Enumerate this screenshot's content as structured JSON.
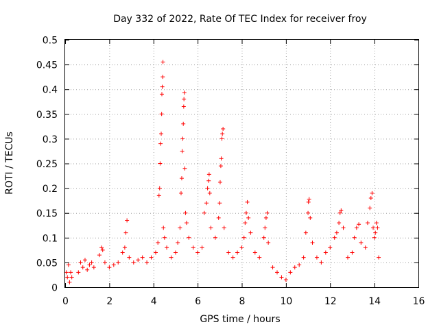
{
  "chart_data": {
    "type": "scatter",
    "title": "Day 332 of 2022, Rate Of TEC Index for receiver froy",
    "xlabel": "GPS time / hours",
    "ylabel": "ROTI / TECUs",
    "xlim": [
      0,
      16
    ],
    "ylim": [
      0,
      0.5
    ],
    "grid": true,
    "marker": "+",
    "series_color": "#ff0000",
    "x_ticks": [
      "0",
      "2",
      "4",
      "6",
      "8",
      "10",
      "12",
      "14",
      "16"
    ],
    "y_ticks": [
      "0",
      "0.05",
      "0.1",
      "0.15",
      "0.2",
      "0.25",
      "0.3",
      "0.35",
      "0.4",
      "0.45",
      "0.5"
    ],
    "series": [
      {
        "name": "ROTI",
        "points": [
          [
            0.05,
            0.03
          ],
          [
            0.1,
            0.02
          ],
          [
            0.15,
            0.045
          ],
          [
            0.2,
            0.01
          ],
          [
            0.25,
            0.03
          ],
          [
            0.3,
            0.02
          ],
          [
            0.6,
            0.03
          ],
          [
            0.7,
            0.05
          ],
          [
            0.8,
            0.04
          ],
          [
            0.9,
            0.055
          ],
          [
            1.0,
            0.035
          ],
          [
            1.1,
            0.045
          ],
          [
            1.2,
            0.05
          ],
          [
            1.3,
            0.04
          ],
          [
            1.55,
            0.065
          ],
          [
            1.65,
            0.08
          ],
          [
            1.7,
            0.075
          ],
          [
            1.8,
            0.05
          ],
          [
            2.0,
            0.04
          ],
          [
            2.2,
            0.045
          ],
          [
            2.4,
            0.05
          ],
          [
            2.6,
            0.07
          ],
          [
            2.7,
            0.08
          ],
          [
            2.75,
            0.11
          ],
          [
            2.8,
            0.135
          ],
          [
            2.9,
            0.06
          ],
          [
            3.1,
            0.05
          ],
          [
            3.3,
            0.055
          ],
          [
            3.5,
            0.06
          ],
          [
            3.7,
            0.05
          ],
          [
            3.9,
            0.06
          ],
          [
            4.1,
            0.07
          ],
          [
            4.2,
            0.09
          ],
          [
            4.25,
            0.185
          ],
          [
            4.28,
            0.2
          ],
          [
            4.3,
            0.25
          ],
          [
            4.32,
            0.29
          ],
          [
            4.35,
            0.31
          ],
          [
            4.37,
            0.35
          ],
          [
            4.38,
            0.39
          ],
          [
            4.4,
            0.405
          ],
          [
            4.42,
            0.425
          ],
          [
            4.43,
            0.455
          ],
          [
            4.45,
            0.12
          ],
          [
            4.5,
            0.1
          ],
          [
            4.6,
            0.08
          ],
          [
            4.8,
            0.06
          ],
          [
            5.0,
            0.07
          ],
          [
            5.1,
            0.09
          ],
          [
            5.2,
            0.12
          ],
          [
            5.25,
            0.19
          ],
          [
            5.28,
            0.22
          ],
          [
            5.3,
            0.275
          ],
          [
            5.32,
            0.3
          ],
          [
            5.35,
            0.33
          ],
          [
            5.37,
            0.365
          ],
          [
            5.38,
            0.38
          ],
          [
            5.4,
            0.393
          ],
          [
            5.42,
            0.24
          ],
          [
            5.45,
            0.15
          ],
          [
            5.5,
            0.13
          ],
          [
            5.6,
            0.1
          ],
          [
            5.8,
            0.08
          ],
          [
            6.0,
            0.07
          ],
          [
            6.2,
            0.08
          ],
          [
            6.3,
            0.15
          ],
          [
            6.4,
            0.17
          ],
          [
            6.45,
            0.2
          ],
          [
            6.5,
            0.215
          ],
          [
            6.52,
            0.228
          ],
          [
            6.55,
            0.19
          ],
          [
            6.6,
            0.12
          ],
          [
            6.8,
            0.1
          ],
          [
            6.95,
            0.14
          ],
          [
            7.0,
            0.17
          ],
          [
            7.02,
            0.212
          ],
          [
            7.05,
            0.245
          ],
          [
            7.07,
            0.26
          ],
          [
            7.1,
            0.3
          ],
          [
            7.12,
            0.31
          ],
          [
            7.15,
            0.32
          ],
          [
            7.2,
            0.12
          ],
          [
            7.4,
            0.07
          ],
          [
            7.6,
            0.06
          ],
          [
            7.8,
            0.07
          ],
          [
            8.0,
            0.08
          ],
          [
            8.1,
            0.1
          ],
          [
            8.15,
            0.13
          ],
          [
            8.2,
            0.15
          ],
          [
            8.25,
            0.172
          ],
          [
            8.3,
            0.14
          ],
          [
            8.4,
            0.11
          ],
          [
            8.6,
            0.07
          ],
          [
            8.8,
            0.06
          ],
          [
            9.0,
            0.1
          ],
          [
            9.05,
            0.12
          ],
          [
            9.1,
            0.14
          ],
          [
            9.15,
            0.15
          ],
          [
            9.2,
            0.09
          ],
          [
            9.4,
            0.04
          ],
          [
            9.6,
            0.03
          ],
          [
            9.8,
            0.02
          ],
          [
            10.0,
            0.015
          ],
          [
            10.2,
            0.03
          ],
          [
            10.4,
            0.04
          ],
          [
            10.6,
            0.045
          ],
          [
            10.8,
            0.06
          ],
          [
            10.9,
            0.11
          ],
          [
            11.0,
            0.15
          ],
          [
            11.02,
            0.172
          ],
          [
            11.05,
            0.178
          ],
          [
            11.1,
            0.14
          ],
          [
            11.2,
            0.09
          ],
          [
            11.4,
            0.06
          ],
          [
            11.6,
            0.05
          ],
          [
            11.8,
            0.07
          ],
          [
            12.0,
            0.08
          ],
          [
            12.2,
            0.1
          ],
          [
            12.3,
            0.11
          ],
          [
            12.4,
            0.13
          ],
          [
            12.45,
            0.15
          ],
          [
            12.5,
            0.155
          ],
          [
            12.6,
            0.12
          ],
          [
            12.8,
            0.06
          ],
          [
            13.0,
            0.07
          ],
          [
            13.1,
            0.1
          ],
          [
            13.2,
            0.12
          ],
          [
            13.3,
            0.127
          ],
          [
            13.4,
            0.09
          ],
          [
            13.6,
            0.08
          ],
          [
            13.7,
            0.13
          ],
          [
            13.8,
            0.16
          ],
          [
            13.85,
            0.18
          ],
          [
            13.9,
            0.19
          ],
          [
            13.95,
            0.12
          ],
          [
            14.0,
            0.1
          ],
          [
            14.05,
            0.11
          ],
          [
            14.1,
            0.13
          ],
          [
            14.15,
            0.12
          ],
          [
            14.2,
            0.06
          ]
        ]
      }
    ]
  }
}
